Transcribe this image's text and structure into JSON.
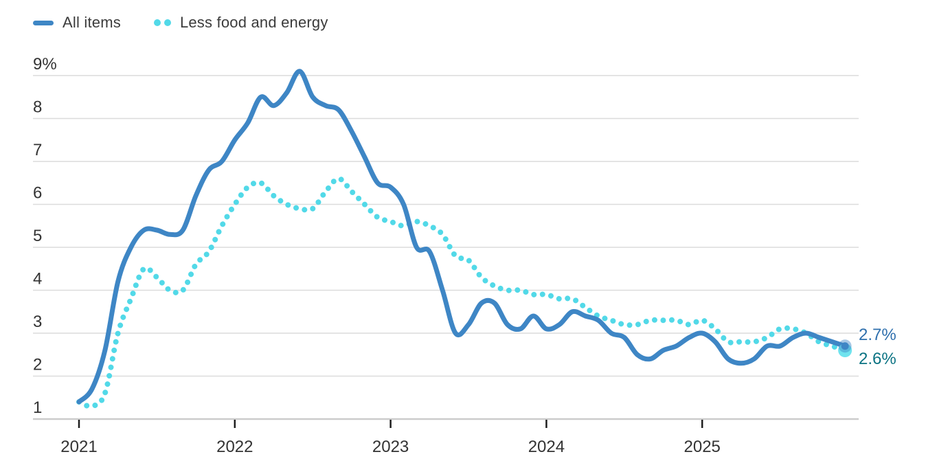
{
  "legend": {
    "items": [
      {
        "label": "All items",
        "color": "#3e86c5",
        "style": "solid"
      },
      {
        "label": "Less food and energy",
        "color": "#52d9e8",
        "style": "dotted"
      }
    ]
  },
  "colors": {
    "all_items_line": "#3e86c5",
    "core_line": "#52d9e8",
    "all_items_end_label": "#2e6fad",
    "core_end_label": "#0b7383",
    "gridline": "#dcdcdc",
    "axis_line": "#cccccc",
    "tick": "#1e1e1e",
    "axis_text": "#333333"
  },
  "chart_data": {
    "type": "line",
    "title": "",
    "xlabel": "",
    "ylabel": "",
    "x_unit": "month",
    "grid": "horizontal",
    "legend_position": "top-left",
    "ylim": [
      1,
      9
    ],
    "y_tick_labels": [
      "9%",
      "8",
      "7",
      "6",
      "5",
      "4",
      "3",
      "2",
      "1"
    ],
    "y_tick_values": [
      9,
      8,
      7,
      6,
      5,
      4,
      3,
      2,
      1
    ],
    "x_tick_labels": [
      "2021",
      "2022",
      "2023",
      "2024",
      "2025"
    ],
    "x_tick_positions": [
      0,
      12,
      24,
      36,
      48
    ],
    "x": [
      "2021-01",
      "2021-02",
      "2021-03",
      "2021-04",
      "2021-05",
      "2021-06",
      "2021-07",
      "2021-08",
      "2021-09",
      "2021-10",
      "2021-11",
      "2021-12",
      "2022-01",
      "2022-02",
      "2022-03",
      "2022-04",
      "2022-05",
      "2022-06",
      "2022-07",
      "2022-08",
      "2022-09",
      "2022-10",
      "2022-11",
      "2022-12",
      "2023-01",
      "2023-02",
      "2023-03",
      "2023-04",
      "2023-05",
      "2023-06",
      "2023-07",
      "2023-08",
      "2023-09",
      "2023-10",
      "2023-11",
      "2023-12",
      "2024-01",
      "2024-02",
      "2024-03",
      "2024-04",
      "2024-05",
      "2024-06",
      "2024-07",
      "2024-08",
      "2024-09",
      "2024-10",
      "2024-11",
      "2024-12",
      "2025-01",
      "2025-02",
      "2025-03",
      "2025-04",
      "2025-05",
      "2025-06",
      "2025-07",
      "2025-08",
      "2025-09",
      "2025-10",
      "2025-11",
      "2025-12"
    ],
    "series": [
      {
        "name": "All items",
        "style": "solid",
        "color": "#3e86c5",
        "end_label": "2.7%",
        "end_label_color": "#2e6fad",
        "values": [
          1.4,
          1.7,
          2.6,
          4.2,
          5.0,
          5.4,
          5.4,
          5.3,
          5.4,
          6.2,
          6.8,
          7.0,
          7.5,
          7.9,
          8.5,
          8.3,
          8.6,
          9.1,
          8.5,
          8.3,
          8.2,
          7.7,
          7.1,
          6.5,
          6.4,
          6.0,
          5.0,
          4.9,
          4.0,
          3.0,
          3.2,
          3.7,
          3.7,
          3.2,
          3.1,
          3.4,
          3.1,
          3.2,
          3.5,
          3.4,
          3.3,
          3.0,
          2.9,
          2.5,
          2.4,
          2.6,
          2.7,
          2.9,
          3.0,
          2.8,
          2.4,
          2.3,
          2.4,
          2.7,
          2.7,
          2.9,
          3.0,
          2.9,
          2.8,
          2.7
        ]
      },
      {
        "name": "Less food and energy",
        "style": "dotted",
        "color": "#52d9e8",
        "end_label": "2.6%",
        "end_label_color": "#0b7383",
        "values": [
          1.4,
          1.3,
          1.6,
          3.0,
          3.8,
          4.5,
          4.3,
          4.0,
          4.0,
          4.6,
          4.9,
          5.5,
          6.0,
          6.4,
          6.5,
          6.2,
          6.0,
          5.9,
          5.9,
          6.3,
          6.6,
          6.3,
          6.0,
          5.7,
          5.6,
          5.5,
          5.6,
          5.5,
          5.3,
          4.8,
          4.7,
          4.3,
          4.1,
          4.0,
          4.0,
          3.9,
          3.9,
          3.8,
          3.8,
          3.6,
          3.4,
          3.3,
          3.2,
          3.2,
          3.3,
          3.3,
          3.3,
          3.2,
          3.3,
          3.1,
          2.8,
          2.8,
          2.8,
          2.9,
          3.1,
          3.1,
          3.0,
          2.8,
          2.7,
          2.6
        ]
      }
    ]
  }
}
